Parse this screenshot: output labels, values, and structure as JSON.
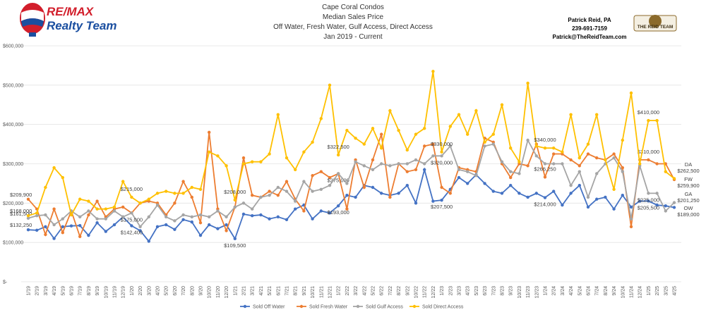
{
  "header": {
    "logo_top": "RE/MAX",
    "logo_bottom": "Realty Team",
    "badge": "THE REID TEAM",
    "contact": [
      "Patrick Reid, PA",
      "239-691-7159",
      "Patrick@TheReidTeam.com"
    ]
  },
  "chart_data": {
    "type": "line",
    "title": [
      "Cape Coral Condos",
      "Median Sales Price",
      "Off Water, Fresh Water, Gulf Access, Direct Access",
      "Jan 2019 - Current"
    ],
    "categories": [
      "1/19",
      "2/19",
      "3/19",
      "4/19",
      "5/19",
      "6/19",
      "7/19",
      "8/19",
      "9/19",
      "10/19",
      "11/19",
      "12/19",
      "1/20",
      "2/20",
      "3/20",
      "4/20",
      "5/20",
      "6/20",
      "7/20",
      "8/20",
      "9/20",
      "10/20",
      "11/20",
      "12/20",
      "1/21",
      "2/21",
      "3/21",
      "4/21",
      "5/21",
      "6/21",
      "7/21",
      "8/21",
      "9/21",
      "10/21",
      "11/21",
      "12/21",
      "1/22",
      "2/22",
      "3/22",
      "4/22",
      "5/22",
      "6/22",
      "7/22",
      "8/22",
      "9/22",
      "10/22",
      "11/22",
      "12/22",
      "1/23",
      "2/23",
      "3/23",
      "4/23",
      "5/23",
      "6/23",
      "7/23",
      "8/23",
      "9/23",
      "10/23",
      "11/23",
      "12/23",
      "1/24",
      "2/24",
      "3/24",
      "4/24",
      "5/24",
      "6/24",
      "7/24",
      "8/24",
      "9/24",
      "10/24",
      "11/24",
      "12/24",
      "1/25",
      "2/25",
      "3/25",
      "4/25"
    ],
    "ylim": [
      0,
      600000
    ],
    "yticks": [
      {
        "value": 0,
        "label": "$-"
      },
      {
        "value": 100000,
        "label": "$100,000"
      },
      {
        "value": 200000,
        "label": "$200,000"
      },
      {
        "value": 300000,
        "label": "$300,000"
      },
      {
        "value": 400000,
        "label": "$400,000"
      },
      {
        "value": 500000,
        "label": "$500,000"
      },
      {
        "value": 600000,
        "label": "$600,000"
      }
    ],
    "grid": true,
    "legend": "bottom",
    "series": [
      {
        "name": "Sold Off Water",
        "short": "OW",
        "color": "#4472c4",
        "values": [
          132250,
          131000,
          140000,
          110000,
          140000,
          142000,
          143000,
          118000,
          150000,
          128000,
          145000,
          165000,
          142400,
          130000,
          103000,
          140000,
          145000,
          133000,
          158000,
          152000,
          118000,
          145000,
          135000,
          145000,
          109500,
          172000,
          168000,
          170000,
          160000,
          165000,
          158000,
          185000,
          195000,
          160000,
          180000,
          175000,
          193000,
          220000,
          215000,
          245000,
          240000,
          225000,
          220000,
          225000,
          245000,
          200000,
          285000,
          205000,
          207500,
          235000,
          265000,
          250000,
          272000,
          250000,
          230000,
          225000,
          245000,
          225000,
          215000,
          225000,
          214000,
          230000,
          195000,
          225000,
          245000,
          190000,
          210000,
          215000,
          185000,
          220000,
          190000,
          205000,
          205500,
          195000,
          193000,
          189000
        ],
        "value_labels": [
          "$132,250",
          null,
          null,
          null,
          null,
          null,
          null,
          null,
          null,
          null,
          null,
          null,
          "$142,400",
          null,
          null,
          null,
          null,
          null,
          null,
          null,
          null,
          null,
          null,
          null,
          "$109,500",
          null,
          null,
          null,
          null,
          null,
          null,
          null,
          null,
          null,
          null,
          null,
          "$193,000",
          null,
          null,
          null,
          null,
          null,
          null,
          null,
          null,
          null,
          null,
          null,
          "$207,500",
          null,
          null,
          null,
          null,
          null,
          null,
          null,
          null,
          null,
          null,
          null,
          "$214,000",
          null,
          null,
          null,
          null,
          null,
          null,
          null,
          null,
          null,
          null,
          null,
          "$205,500",
          null,
          null,
          "$189,000"
        ]
      },
      {
        "name": "Sold Fresh Water",
        "short": "FW",
        "color": "#ed7d31",
        "values": [
          209900,
          185000,
          120000,
          185000,
          125000,
          180000,
          115000,
          170000,
          205000,
          165000,
          185000,
          190000,
          175000,
          200000,
          205000,
          200000,
          170000,
          200000,
          255000,
          215000,
          150000,
          380000,
          185000,
          130000,
          190000,
          315000,
          220000,
          215000,
          230000,
          220000,
          255000,
          210000,
          180000,
          270000,
          280000,
          265000,
          275000,
          185000,
          310000,
          240000,
          310000,
          375000,
          215000,
          300000,
          280000,
          285000,
          345000,
          350000,
          240000,
          225000,
          290000,
          285000,
          280000,
          365000,
          355000,
          300000,
          265000,
          300000,
          295000,
          350000,
          266250,
          325000,
          325000,
          310000,
          295000,
          325000,
          315000,
          310000,
          325000,
          290000,
          140000,
          310000,
          310000,
          300000,
          300000,
          259900
        ],
        "value_labels": [
          "$209,900",
          null,
          null,
          null,
          null,
          null,
          null,
          null,
          null,
          null,
          null,
          null,
          null,
          null,
          null,
          null,
          null,
          null,
          null,
          null,
          null,
          null,
          null,
          null,
          null,
          null,
          null,
          null,
          null,
          null,
          null,
          null,
          null,
          null,
          null,
          null,
          "$275,000",
          null,
          null,
          null,
          null,
          null,
          null,
          null,
          null,
          null,
          null,
          null,
          null,
          null,
          null,
          null,
          null,
          null,
          null,
          null,
          null,
          null,
          null,
          null,
          "$266,250",
          null,
          null,
          null,
          null,
          null,
          null,
          null,
          null,
          null,
          null,
          null,
          "$310,000",
          null,
          null,
          "$259,900"
        ]
      },
      {
        "name": "Sold Gulf Access",
        "short": "GA",
        "color": "#a5a5a5",
        "values": [
          161500,
          168000,
          170000,
          145000,
          160000,
          180000,
          165000,
          180000,
          160000,
          160000,
          180000,
          165000,
          175000,
          140000,
          165000,
          195000,
          165000,
          155000,
          170000,
          165000,
          170000,
          165000,
          180000,
          165000,
          190000,
          200000,
          185000,
          215000,
          220000,
          240000,
          230000,
          205000,
          255000,
          230000,
          235000,
          245000,
          275000,
          250000,
          305000,
          295000,
          285000,
          300000,
          295000,
          300000,
          300000,
          310000,
          300000,
          320000,
          320000,
          345000,
          285000,
          280000,
          270000,
          345000,
          350000,
          305000,
          280000,
          275000,
          360000,
          320000,
          300000,
          300000,
          300000,
          245000,
          280000,
          215000,
          275000,
          300000,
          315000,
          280000,
          160000,
          295000,
          225000,
          225000,
          180000,
          201250
        ],
        "value_labels": [
          "$161,500",
          null,
          null,
          null,
          null,
          null,
          null,
          null,
          null,
          null,
          null,
          null,
          "$175,000",
          null,
          null,
          null,
          null,
          null,
          null,
          null,
          null,
          null,
          null,
          null,
          null,
          null,
          null,
          null,
          null,
          null,
          null,
          null,
          null,
          null,
          null,
          null,
          null,
          null,
          null,
          null,
          null,
          null,
          null,
          null,
          null,
          null,
          null,
          null,
          "$320,000",
          null,
          null,
          null,
          null,
          null,
          null,
          null,
          null,
          null,
          null,
          null,
          null,
          null,
          null,
          null,
          null,
          null,
          null,
          null,
          null,
          null,
          null,
          null,
          "$225,000",
          null,
          null,
          "$201,250"
        ]
      },
      {
        "name": "Sold Direct Access",
        "short": "DA",
        "color": "#ffc000",
        "values": [
          168000,
          175000,
          240000,
          290000,
          265000,
          170000,
          210000,
          205000,
          185000,
          185000,
          190000,
          255000,
          215000,
          200000,
          210000,
          225000,
          230000,
          225000,
          225000,
          240000,
          235000,
          330000,
          320000,
          295000,
          208000,
          300000,
          305000,
          305000,
          325000,
          425000,
          315000,
          285000,
          330000,
          355000,
          415000,
          500000,
          322500,
          385000,
          365000,
          350000,
          390000,
          340000,
          435000,
          385000,
          335000,
          375000,
          390000,
          535000,
          330000,
          395000,
          425000,
          375000,
          435000,
          355000,
          375000,
          450000,
          340000,
          305000,
          505000,
          345000,
          340000,
          340000,
          330000,
          425000,
          315000,
          350000,
          425000,
          310000,
          235000,
          360000,
          480000,
          300000,
          410000,
          410000,
          280000,
          262500
        ],
        "value_labels": [
          "$168,000",
          null,
          null,
          null,
          null,
          null,
          null,
          null,
          null,
          null,
          null,
          null,
          "$215,000",
          null,
          null,
          null,
          null,
          null,
          null,
          null,
          null,
          null,
          null,
          null,
          "$208,000",
          null,
          null,
          null,
          null,
          null,
          null,
          null,
          null,
          null,
          null,
          null,
          "$322,500",
          null,
          null,
          null,
          null,
          null,
          null,
          null,
          null,
          null,
          null,
          null,
          "$330,000",
          null,
          null,
          null,
          null,
          null,
          null,
          null,
          null,
          null,
          null,
          null,
          "$340,000",
          null,
          null,
          null,
          null,
          null,
          null,
          null,
          null,
          null,
          null,
          null,
          "$410,000",
          null,
          null,
          "$262,500"
        ]
      }
    ]
  }
}
